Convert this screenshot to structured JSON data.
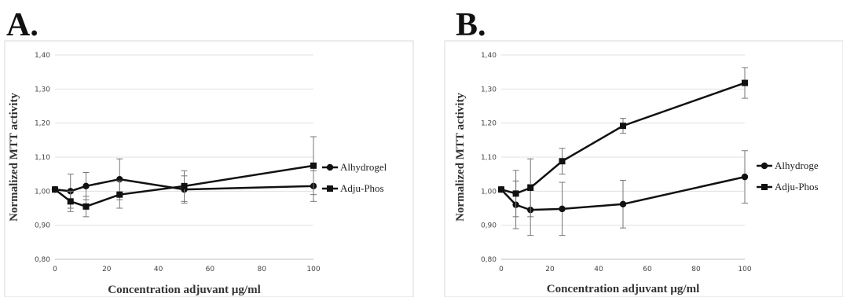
{
  "chart_data": [
    {
      "panel": "A.",
      "type": "line",
      "xlabel": "Concentration adjuvant µg/ml",
      "ylabel": "Normalized MTT activity",
      "xlim": [
        0,
        100
      ],
      "ylim": [
        0.8,
        1.4
      ],
      "xticks": [
        0,
        20,
        40,
        60,
        80,
        100
      ],
      "yticks": [
        0.8,
        0.9,
        1.0,
        1.1,
        1.2,
        1.3,
        1.4
      ],
      "ytick_labels": [
        "0,80",
        "0,90",
        "1,00",
        "1,10",
        "1,20",
        "1,30",
        "1,40"
      ],
      "xtick_labels": [
        "0",
        "20",
        "40",
        "60",
        "80",
        "100"
      ],
      "grid": "horizontal",
      "legend_position": "right",
      "series": [
        {
          "name": "Alhydrogel",
          "marker": "circle",
          "x": [
            0,
            6,
            12,
            25,
            50,
            100
          ],
          "y": [
            1.005,
            1.0,
            1.015,
            1.035,
            1.005,
            1.015
          ],
          "err": [
            0.005,
            0.05,
            0.04,
            0.06,
            0.04,
            0.045
          ]
        },
        {
          "name": "Adju-Phos",
          "marker": "square",
          "x": [
            0,
            6,
            12,
            25,
            50,
            100
          ],
          "y": [
            1.005,
            0.97,
            0.955,
            0.99,
            1.015,
            1.075
          ],
          "err": [
            0.005,
            0.03,
            0.03,
            0.04,
            0.045,
            0.085
          ]
        }
      ]
    },
    {
      "panel": "B.",
      "type": "line",
      "xlabel": "Concentration adjuvant µg/ml",
      "ylabel": "Normalized MTT activity",
      "xlim": [
        0,
        100
      ],
      "ylim": [
        0.8,
        1.4
      ],
      "xticks": [
        0,
        20,
        40,
        60,
        80,
        100
      ],
      "yticks": [
        0.8,
        0.9,
        1.0,
        1.1,
        1.2,
        1.3,
        1.4
      ],
      "ytick_labels": [
        "0,80",
        "0,90",
        "1,00",
        "1,10",
        "1,20",
        "1,30",
        "1,40"
      ],
      "xtick_labels": [
        "0",
        "20",
        "40",
        "60",
        "80",
        "100"
      ],
      "grid": "horizontal",
      "legend_position": "right",
      "series": [
        {
          "name": "Alhydroge",
          "marker": "circle",
          "x": [
            0,
            6,
            12,
            25,
            50,
            100
          ],
          "y": [
            1.005,
            0.96,
            0.945,
            0.948,
            0.962,
            1.042
          ],
          "err": [
            0.005,
            0.07,
            0.075,
            0.078,
            0.07,
            0.077
          ]
        },
        {
          "name": "Adju-Phos",
          "marker": "square",
          "x": [
            0,
            6,
            12,
            25,
            50,
            100
          ],
          "y": [
            1.005,
            0.993,
            1.01,
            1.088,
            1.192,
            1.318
          ],
          "err": [
            0.005,
            0.068,
            0.085,
            0.038,
            0.022,
            0.045
          ]
        }
      ]
    }
  ]
}
